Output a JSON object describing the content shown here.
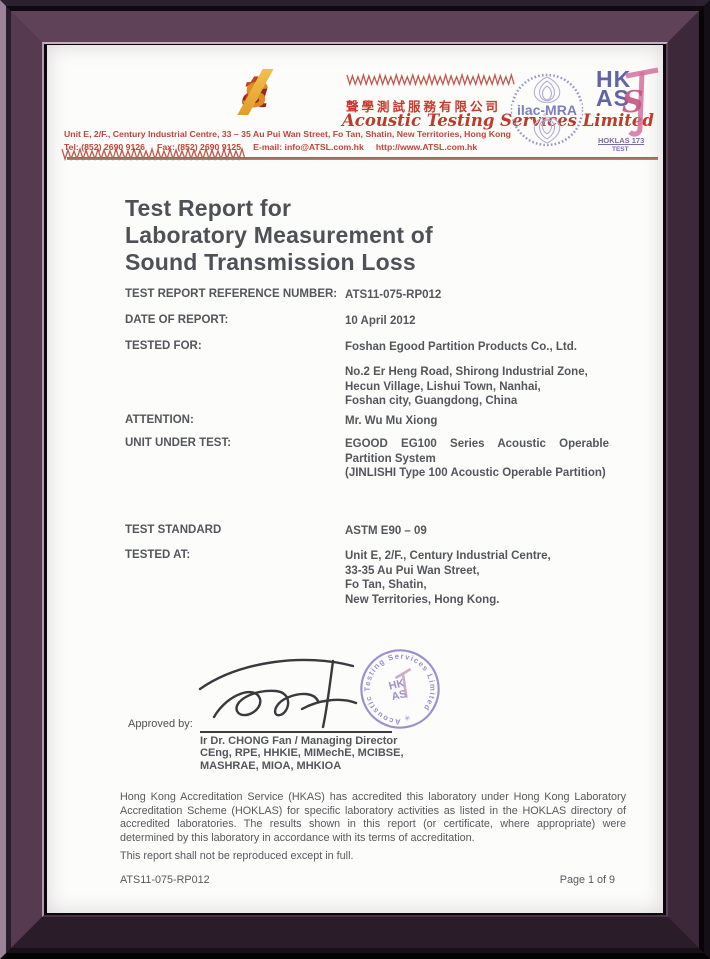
{
  "colors": {
    "frame_purple": "#4e3048",
    "accent_red": "#c0392b",
    "logo_gradient": [
      "#95291e",
      "#bb441e",
      "#e08a21",
      "#eeb845"
    ],
    "badge_blue": "#6264a8",
    "badge_pink": "#d4719e",
    "stamp_purple": "#8b7cc4",
    "text_gray": "#55565b"
  },
  "header": {
    "logo_text_a": "a",
    "logo_text_t": "t",
    "logo_text_s": "s",
    "company_zh": "聲學測試服務有限公司",
    "company_en": "Acoustic Testing Services Limited",
    "address_line": "Unit E, 2/F., Century Industrial Centre, 33 – 35 Au Pui Wan Street, Fo Tan, Shatin, New Territories, Hong Kong",
    "contact_line": "Tel: (852) 2690 9126     Fax: (852) 2690 9125     E-mail: info@ATSL.com.hk     http://www.ATSL.com.hk",
    "ilac_label": "ilac-MRA",
    "hkas_line1": "HK",
    "hkas_line2": "AS",
    "hoklas_label": "HOKLAS 173",
    "hoklas_sub": "TEST"
  },
  "title": "Test Report for\nLaboratory Measurement of\nSound Transmission Loss",
  "fields": [
    {
      "label": "TEST REPORT REFERENCE NUMBER:",
      "value": "ATS11-075-RP012"
    },
    {
      "label": "DATE OF REPORT:",
      "value": "10 April 2012"
    },
    {
      "label": "TESTED FOR:",
      "value": "Foshan Egood Partition Products Co., Ltd."
    },
    {
      "label": "",
      "value": "No.2 Er Heng Road, Shirong Industrial Zone,\nHecun Village, Lishui Town, Nanhai,\nFoshan city, Guangdong, China"
    },
    {
      "label": "ATTENTION:",
      "value": "Mr. Wu Mu Xiong"
    },
    {
      "label": "UNIT UNDER TEST:",
      "value": "EGOOD EG100 Series Acoustic Operable Partition System\n(JINLISHI Type 100 Acoustic Operable Partition)"
    },
    {
      "label": "TEST STANDARD",
      "value": "ASTM E90 – 09"
    },
    {
      "label": "TESTED AT:",
      "value": "Unit E, 2/F., Century Industrial Centre,\n33-35 Au Pui Wan Street,\nFo Tan, Shatin,\nNew Territories, Hong Kong."
    }
  ],
  "signature": {
    "approved_by_label": "Approved by:",
    "name_line": "Ir Dr. CHONG Fan / Managing Director",
    "credentials": "CEng, RPE, HHKIE, MIMechE, MCIBSE,\nMASHRAE, MIOA, MHKIOA",
    "stamp_text": "Acoustic Testing Services Limited",
    "stamp_center_line1": "HK",
    "stamp_center_line2": "AS"
  },
  "footer": {
    "accreditation": "Hong Kong Accreditation Service (HKAS) has accredited this laboratory under Hong Kong Laboratory Accreditation Scheme (HOKLAS) for specific laboratory activities as listed in the HOKLAS directory of accredited laboratories. The results shown in this report (or certificate, where appropriate) were determined by this laboratory in accordance with its terms of accreditation.",
    "reproduction_note": "This report shall not be reproduced except in full.",
    "reference": "ATS11-075-RP012",
    "page": "Page 1 of 9"
  }
}
